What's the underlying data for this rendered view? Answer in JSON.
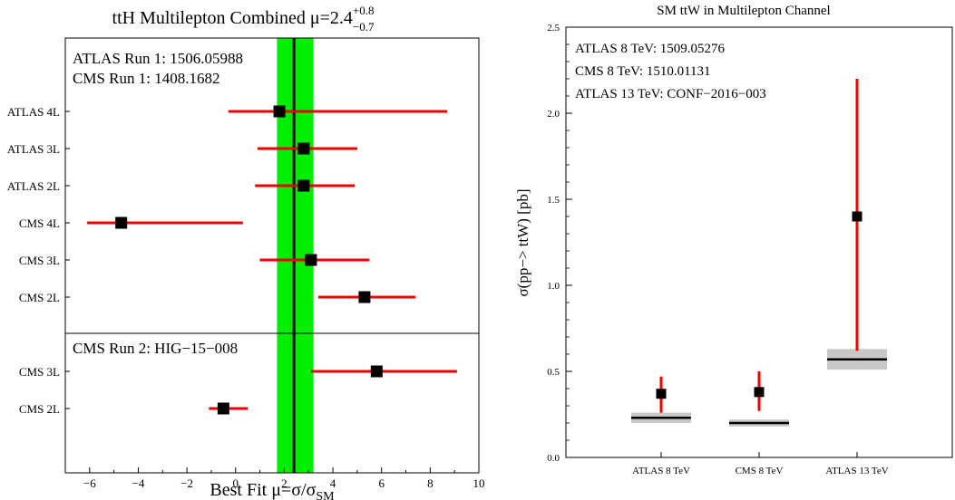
{
  "chart_data": [
    {
      "type": "scatter",
      "title": "ttH Multilepton Combined μ=2.4",
      "title_sup": "+0.8",
      "title_sub": "−0.7",
      "xlabel_main": "Best Fit μ=σ/σ",
      "xlabel_sub": "SM",
      "xlim": [
        -7,
        10
      ],
      "xticks": [
        "−6",
        "−4",
        "−2",
        "0",
        "2",
        "4",
        "6",
        "8",
        "10"
      ],
      "combined": {
        "value": 2.4,
        "low": 1.7,
        "high": 3.2,
        "band_color": "#00ee00"
      },
      "panels": [
        {
          "annotations": [
            "ATLAS Run 1: 1506.05988",
            "CMS Run 1: 1408.1682"
          ],
          "points": [
            {
              "label": "ATLAS 4L",
              "value": 1.8,
              "low": -0.3,
              "high": 8.7
            },
            {
              "label": "ATLAS 3L",
              "value": 2.8,
              "low": 0.9,
              "high": 5.0
            },
            {
              "label": "ATLAS 2L",
              "value": 2.8,
              "low": 0.8,
              "high": 4.9
            },
            {
              "label": "CMS 4L",
              "value": -4.7,
              "low": -6.1,
              "high": 0.3
            },
            {
              "label": "CMS 3L",
              "value": 3.1,
              "low": 1.0,
              "high": 5.5
            },
            {
              "label": "CMS 2L",
              "value": 5.3,
              "low": 3.4,
              "high": 7.4
            }
          ]
        },
        {
          "annotations": [
            "CMS Run 2: HIG−15−008"
          ],
          "points": [
            {
              "label": "CMS 3L",
              "value": 5.8,
              "low": 3.1,
              "high": 9.1
            },
            {
              "label": "CMS 2L",
              "value": -0.5,
              "low": -1.1,
              "high": 0.5
            }
          ]
        }
      ],
      "colors": {
        "error_bar": "#ee0000",
        "marker": "#000000",
        "band": "#00ee00"
      }
    },
    {
      "type": "scatter",
      "title": "SM ttW in Multilepton Channel",
      "ylabel": "σ(pp−> ttW) [pb]",
      "ylim": [
        0,
        2.5
      ],
      "yticks": [
        "0.0",
        "0.5",
        "1.0",
        "1.5",
        "2.0",
        "2.5"
      ],
      "annotations": [
        "ATLAS 8 TeV: 1509.05276",
        "CMS 8 TeV: 1510.01131",
        "ATLAS 13 TeV: CONF−2016−003"
      ],
      "categories": [
        "ATLAS 8 TeV",
        "CMS 8 TeV",
        "ATLAS 13 TeV"
      ],
      "measured": [
        {
          "value": 0.37,
          "low": 0.26,
          "high": 0.47
        },
        {
          "value": 0.38,
          "low": 0.27,
          "high": 0.5
        },
        {
          "value": 1.4,
          "low": 0.62,
          "high": 2.2
        }
      ],
      "sm_prediction": [
        {
          "value": 0.23,
          "low": 0.2,
          "high": 0.26
        },
        {
          "value": 0.2,
          "low": 0.18,
          "high": 0.22
        },
        {
          "value": 0.57,
          "low": 0.51,
          "high": 0.63
        }
      ],
      "colors": {
        "error_bar": "#ee0000",
        "marker": "#000000",
        "band": "#c8c8c8"
      }
    }
  ]
}
